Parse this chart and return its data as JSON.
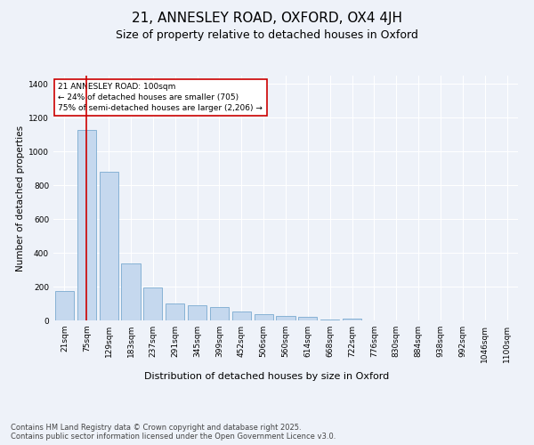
{
  "title1": "21, ANNESLEY ROAD, OXFORD, OX4 4JH",
  "title2": "Size of property relative to detached houses in Oxford",
  "xlabel": "Distribution of detached houses by size in Oxford",
  "ylabel": "Number of detached properties",
  "bar_labels": [
    "21sqm",
    "75sqm",
    "129sqm",
    "183sqm",
    "237sqm",
    "291sqm",
    "345sqm",
    "399sqm",
    "452sqm",
    "506sqm",
    "560sqm",
    "614sqm",
    "668sqm",
    "722sqm",
    "776sqm",
    "830sqm",
    "884sqm",
    "938sqm",
    "992sqm",
    "1046sqm",
    "1100sqm"
  ],
  "bar_values": [
    175,
    1130,
    880,
    340,
    195,
    100,
    88,
    80,
    55,
    35,
    25,
    20,
    5,
    10,
    0,
    0,
    0,
    0,
    0,
    0,
    0
  ],
  "bar_color": "#c5d8ee",
  "bar_edgecolor": "#7aaad0",
  "vline_x": 1,
  "vline_color": "#cc0000",
  "annotation_text": "21 ANNESLEY ROAD: 100sqm\n← 24% of detached houses are smaller (705)\n75% of semi-detached houses are larger (2,206) →",
  "annotation_box_edgecolor": "#cc0000",
  "annotation_box_facecolor": "#ffffff",
  "ylim": [
    0,
    1450
  ],
  "yticks": [
    0,
    200,
    400,
    600,
    800,
    1000,
    1200,
    1400
  ],
  "footer_text": "Contains HM Land Registry data © Crown copyright and database right 2025.\nContains public sector information licensed under the Open Government Licence v3.0.",
  "bg_color": "#eef2f9",
  "plot_bg_color": "#eef2f9",
  "title1_fontsize": 11,
  "title2_fontsize": 9,
  "xlabel_fontsize": 8,
  "ylabel_fontsize": 7.5,
  "tick_fontsize": 6.5,
  "footer_fontsize": 6
}
